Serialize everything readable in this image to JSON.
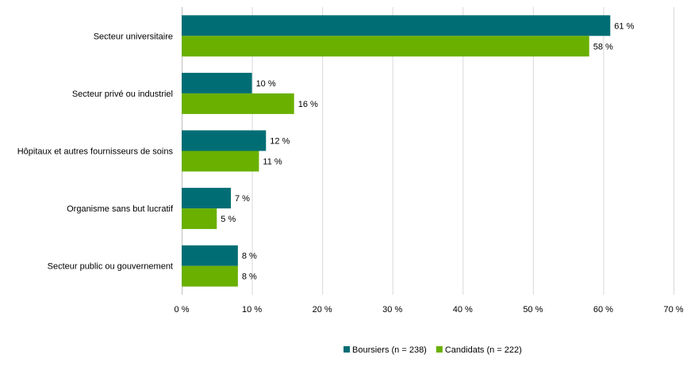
{
  "chart_data": {
    "type": "bar",
    "orientation": "horizontal",
    "categories": [
      "Secteur universitaire",
      "Secteur privé ou industriel",
      "Hôpitaux et autres fournisseurs de soins",
      "Organisme sans but lucratif",
      "Secteur public ou gouvernement"
    ],
    "series": [
      {
        "name": "Boursiers (n = 238)",
        "color": "#006D75",
        "values": [
          61,
          10,
          12,
          7,
          8
        ],
        "value_labels": [
          "61 %",
          "10 %",
          "12 %",
          "7 %",
          "8 %"
        ]
      },
      {
        "name": "Candidats (n = 222)",
        "color": "#69B000",
        "values": [
          58,
          16,
          11,
          5,
          8
        ],
        "value_labels": [
          "58 %",
          "16 %",
          "11 %",
          "5 %",
          "8 %"
        ]
      }
    ],
    "xlim": [
      0,
      70
    ],
    "x_ticks": [
      0,
      10,
      20,
      30,
      40,
      50,
      60,
      70
    ],
    "x_tick_labels": [
      "0 %",
      "10 %",
      "20 %",
      "30 %",
      "40 %",
      "50 %",
      "60 %",
      "70 %"
    ],
    "grid": "vertical",
    "legend_position": "bottom",
    "title": "",
    "xlabel": "",
    "ylabel": ""
  }
}
